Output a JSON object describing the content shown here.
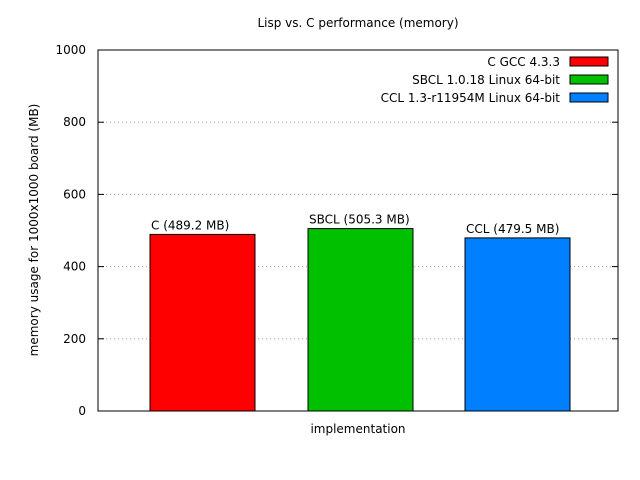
{
  "chart_data": {
    "type": "bar",
    "title": "Lisp vs. C performance (memory)",
    "xlabel": "implementation",
    "ylabel": "memory usage for 1000x1000 board (MB)",
    "ylim": [
      0,
      1000
    ],
    "yticks": [
      0,
      200,
      400,
      600,
      800,
      1000
    ],
    "grid": true,
    "legend_position": "top-right",
    "series": [
      {
        "name": "C GCC 4.3.3",
        "value": 489.2,
        "label": "C (489.2 MB)",
        "color": "#ff0000"
      },
      {
        "name": "SBCL 1.0.18 Linux 64-bit",
        "value": 505.3,
        "label": "SBCL (505.3 MB)",
        "color": "#00c000"
      },
      {
        "name": "CCL 1.3-r11954M Linux 64-bit",
        "value": 479.5,
        "label": "CCL (479.5 MB)",
        "color": "#0080ff"
      }
    ]
  }
}
